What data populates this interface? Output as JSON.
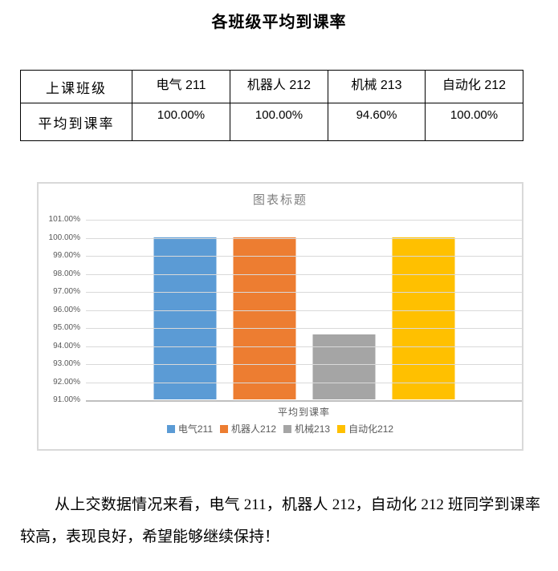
{
  "document": {
    "title": "各班级平均到课率",
    "paragraph": "从上交数据情况来看，电气 211，机器人 212，自动化 212 班同学到课率较高，表现良好，希望能够继续保持！"
  },
  "table": {
    "row_header_label": "上课班级",
    "row_value_label": "平均到课率",
    "classes": [
      "电气 211",
      "机器人 212",
      "机械 213",
      "自动化 212"
    ],
    "rates": [
      "100.00%",
      "100.00%",
      "94.60%",
      "100.00%"
    ]
  },
  "chart_data": {
    "type": "bar",
    "title": "图表标题",
    "categories": [
      "平均到课率"
    ],
    "series": [
      {
        "name": "电气211",
        "values": [
          100.0
        ],
        "color": "#5B9BD5"
      },
      {
        "name": "机器人212",
        "values": [
          100.0
        ],
        "color": "#ED7D31"
      },
      {
        "name": "机械213",
        "values": [
          94.6
        ],
        "color": "#A5A5A5"
      },
      {
        "name": "自动化212",
        "values": [
          100.0
        ],
        "color": "#FFC000"
      }
    ],
    "ylim": [
      91,
      101
    ],
    "ytick_labels": [
      "101.00%",
      "100.00%",
      "99.00%",
      "98.00%",
      "97.00%",
      "96.00%",
      "95.00%",
      "94.00%",
      "93.00%",
      "92.00%",
      "91.00%"
    ],
    "grid": true,
    "grid_color": "#D9D9D9",
    "axis_line_color": "#BFBFBF",
    "label_color": "#595959",
    "title_color": "#808080",
    "legend_position": "bottom"
  }
}
